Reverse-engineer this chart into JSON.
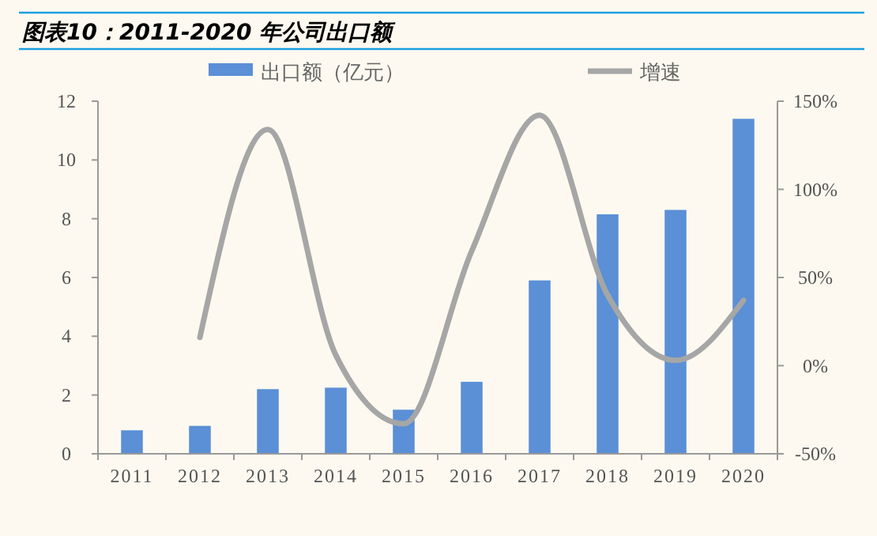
{
  "chart_data": {
    "type": "bar",
    "title": "图表10：2011-2020 年公司出口额",
    "categories": [
      "2011",
      "2012",
      "2013",
      "2014",
      "2015",
      "2016",
      "2017",
      "2018",
      "2019",
      "2020"
    ],
    "series": [
      {
        "name": "出口额（亿元）",
        "color": "#5b8fd6",
        "values": [
          0.8,
          0.95,
          2.2,
          2.25,
          1.5,
          2.45,
          5.9,
          8.15,
          8.3,
          11.4
        ]
      },
      {
        "name": "增速",
        "type": "line",
        "axis": "y2",
        "color": "#a6a6a6",
        "values": [
          null,
          16,
          134,
          6,
          -33,
          65,
          142,
          40,
          3,
          37
        ]
      }
    ],
    "ylim": [
      0,
      12
    ],
    "yticks": [
      0,
      2,
      4,
      6,
      8,
      10,
      12
    ],
    "y2lim": [
      -50,
      150
    ],
    "y2ticks": [
      {
        "value": -50,
        "label": "-50%"
      },
      {
        "value": 0,
        "label": "0%"
      },
      {
        "value": 50,
        "label": "50%"
      },
      {
        "value": 100,
        "label": "100%"
      },
      {
        "value": 150,
        "label": "150%"
      }
    ],
    "legend": "top",
    "grid": false,
    "marker": "none"
  }
}
